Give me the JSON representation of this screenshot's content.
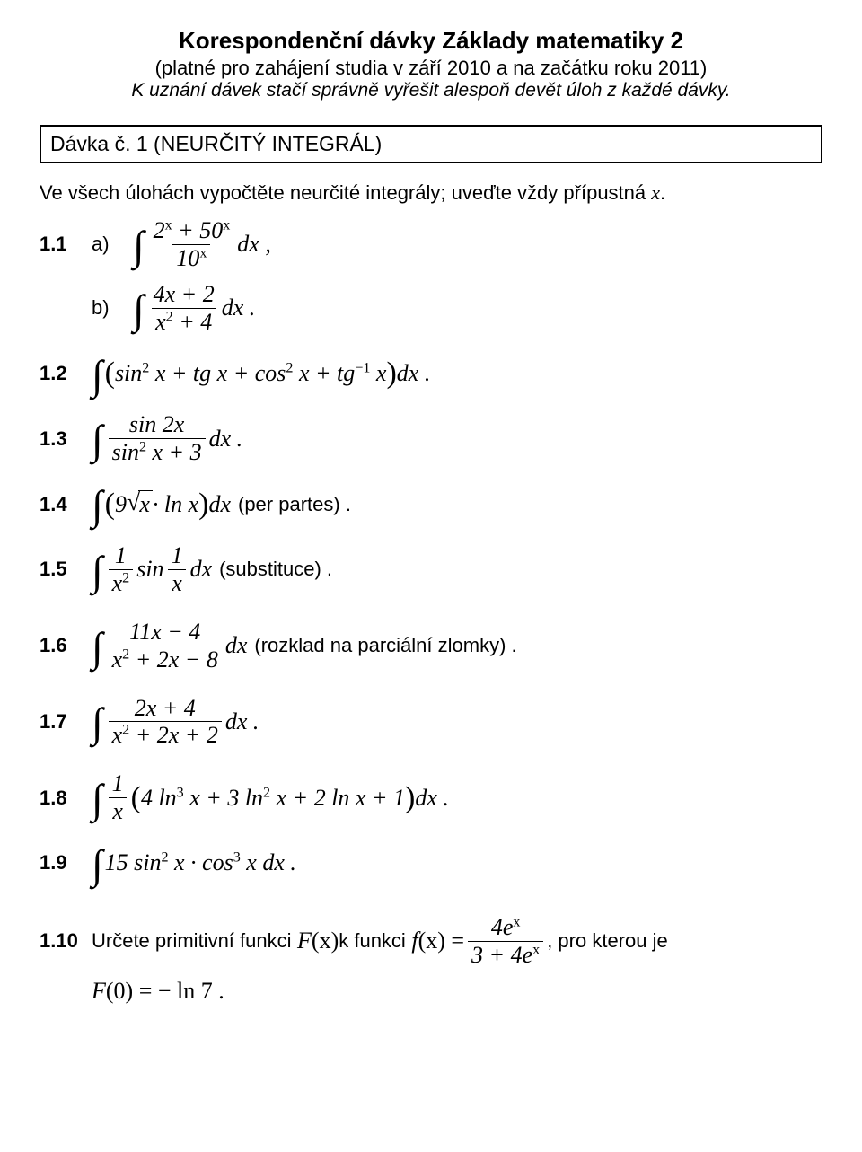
{
  "title": "Korespondenční dávky Základy matematiky 2",
  "subtitle": "(platné pro zahájení studia v září 2010 a na začátku roku 2011)",
  "subnote": "K uznání dávek stačí správně vyřešit alespoň devět úloh z každé dávky.",
  "section_head": "Dávka č. 1 (NEURČITÝ INTEGRÁL)",
  "intro_prefix": "Ve všech úlohách vypočtěte neurčité integrály; uveďte vždy přípustná ",
  "intro_var": "x",
  "intro_suffix": ".",
  "items": {
    "i11": "1.1",
    "i11a": "a)",
    "i11b": "b)",
    "i12": "1.2",
    "i13": "1.3",
    "i14": "1.4",
    "i15": "1.5",
    "i16": "1.6",
    "i17": "1.7",
    "i18": "1.8",
    "i19": "1.9",
    "i110": "1.10"
  },
  "notes": {
    "perpartes": " (per partes) .",
    "substituce": " (substituce) .",
    "parc": " (rozklad na parciální zlomky) ."
  },
  "eq": {
    "e11a_num": "2",
    "e11a_num_exp": "x",
    "e11a_plus": " + 50",
    "e11a_den": "10",
    "e11a_dx": "dx ,",
    "e11b_num": "4x + 2",
    "e11b_den": "x",
    "e11b_den2": " + 4",
    "e11b_dx": "dx .",
    "e12_a": "sin",
    "e12_b": " x + tg x + cos",
    "e12_c": " x + tg",
    "e12_d": " x",
    "e12_dx": "dx .",
    "e13_num_a": "sin 2x",
    "e13_den_a": "sin",
    "e13_den_b": " x + 3",
    "e13_dx": " dx .",
    "e14_a": "9",
    "e14_x": "x",
    "e14_ln": " · ln x",
    "e14_dx": "dx",
    "e15_num1": "1",
    "e15_den1": "x",
    "e15_sin": " sin ",
    "e15_num2": "1",
    "e15_den2": "x",
    "e15_dx": " dx",
    "e16_num": "11x − 4",
    "e16_den_a": "x",
    "e16_den_b": " + 2x − 8",
    "e16_dx": " dx",
    "e17_num": "2x + 4",
    "e17_den_a": "x",
    "e17_den_b": " + 2x + 2",
    "e17_dx": " dx .",
    "e18_num": "1",
    "e18_den": "x",
    "e18_a": "4 ln",
    "e18_b": " x + 3 ln",
    "e18_c": " x + 2 ln x + 1",
    "e18_dx": "dx .",
    "e19_a": "15 sin",
    "e19_b": " x · cos",
    "e19_c": " x dx .",
    "e110_text_a": "Určete primitivní funkci ",
    "e110_F": "F",
    "e110_x1": "(x)",
    "e110_text_b": " k funkci ",
    "e110_f": "f",
    "e110_x2": "(x) = ",
    "e110_num": "4e",
    "e110_den_a": "3 + 4e",
    "e110_text_c": " , pro kterou je",
    "e110_line2_a": "F",
    "e110_line2_b": "(0) = − ln 7 ."
  },
  "sup": {
    "two": "2",
    "three": "3",
    "minus1": "−1",
    "x": "x"
  }
}
